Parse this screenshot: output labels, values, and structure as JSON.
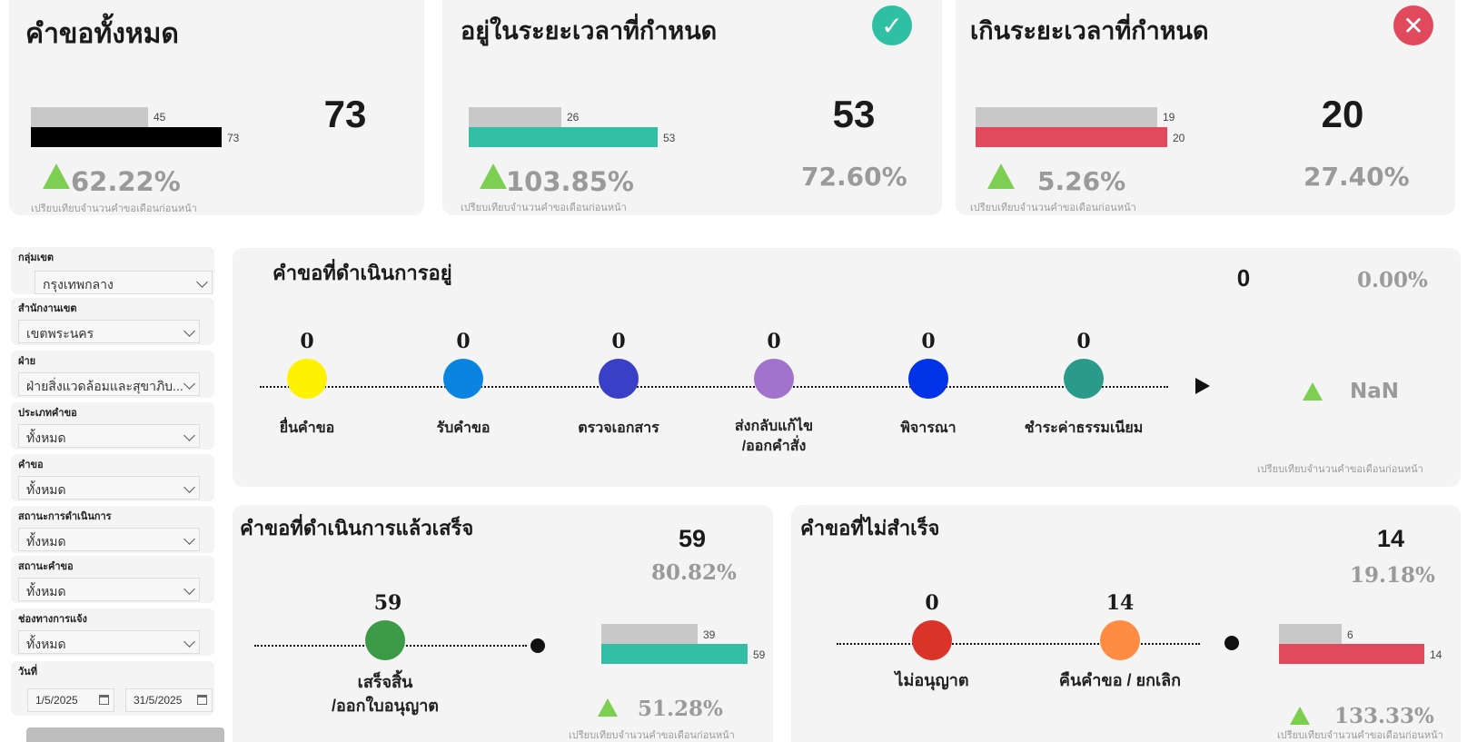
{
  "colors": {
    "gray": "#c8c8c8",
    "black": "#000000",
    "teal": "#33bfa6",
    "red": "#e04a5c",
    "up": "#7dcf52"
  },
  "comparison_note": "เปรียบเทียบจำนวนคำขอเดือนก่อนหน้า",
  "kpis": {
    "total": {
      "title": "คำขอทั้งหมด",
      "prev": "45",
      "curr": "73",
      "prev_value": 45,
      "curr_value": 73,
      "value": "73",
      "change": "62.22%"
    },
    "ontime": {
      "title": "อยู่ในระยะเวลาที่กำหนด",
      "icon": "check-icon",
      "prev": "26",
      "curr": "53",
      "prev_value": 26,
      "curr_value": 53,
      "value": "53",
      "share": "72.60%",
      "change": "103.85%"
    },
    "overdue": {
      "title": "เกินระยะเวลาที่กำหนด",
      "icon": "close-icon",
      "prev": "19",
      "curr": "20",
      "prev_value": 19,
      "curr_value": 20,
      "value": "20",
      "share": "27.40%",
      "change": "5.26%"
    }
  },
  "filters": {
    "group": {
      "label": "กลุ่มเขต",
      "value": "กรุงเทพกลาง"
    },
    "office": {
      "label": "สำนักงานเขต",
      "value": "เขตพระนคร"
    },
    "division": {
      "label": "ฝ่าย",
      "value": "ฝ่ายสิ่งแวดล้อมและสุขาภิบ..."
    },
    "reqtype": {
      "label": "ประเภทคำขอ",
      "value": "ทั้งหมด"
    },
    "request": {
      "label": "คำขอ",
      "value": "ทั้งหมด"
    },
    "procstatus": {
      "label": "สถานะการดำเนินการ",
      "value": "ทั้งหมด"
    },
    "reqstatus": {
      "label": "สถานะคำขอ",
      "value": "ทั้งหมด"
    },
    "channel": {
      "label": "ช่องทางการแจ้ง",
      "value": "ทั้งหมด"
    },
    "date": {
      "label": "วันที่",
      "from": "1/5/2025",
      "to": "31/5/2025"
    }
  },
  "inprogress": {
    "title": "คำขอที่ดำเนินการอยู่",
    "value": "0",
    "share": "0.00%",
    "change": "NaN",
    "stages": [
      {
        "count": "0",
        "label": "ยื่นคำขอ",
        "color": "#fff200"
      },
      {
        "count": "0",
        "label": "รับคำขอ",
        "color": "#0b84e0"
      },
      {
        "count": "0",
        "label": "ตรวจเอกสาร",
        "color": "#3a3fc8"
      },
      {
        "count": "0",
        "label": "ส่งกลับแก้ไข",
        "label2": "/ออกคำสั่ง",
        "color": "#a173cc"
      },
      {
        "count": "0",
        "label": "พิจารณา",
        "color": "#0033e6"
      },
      {
        "count": "0",
        "label": "ชำระค่าธรรมเนียม",
        "color": "#2a9a8a"
      }
    ]
  },
  "completed": {
    "title": "คำขอที่ดำเนินการแล้วเสร็จ",
    "value": "59",
    "share": "80.82%",
    "stage": {
      "count": "59",
      "label": "เสร็จสิ้น",
      "label2": "/ออกใบอนุญาต",
      "color": "#3c9b47"
    },
    "prev": "39",
    "curr": "59",
    "prev_value": 39,
    "curr_value": 59,
    "change": "51.28%"
  },
  "failed": {
    "title": "คำขอที่ไม่สำเร็จ",
    "value": "14",
    "share": "19.18%",
    "stages": [
      {
        "count": "0",
        "label": "ไม่อนุญาต",
        "color": "#da3327"
      },
      {
        "count": "14",
        "label": "คืนคำขอ / ยกเลิก",
        "color": "#ff8c42"
      }
    ],
    "prev": "6",
    "curr": "14",
    "prev_value": 6,
    "curr_value": 14,
    "change": "133.33%"
  }
}
